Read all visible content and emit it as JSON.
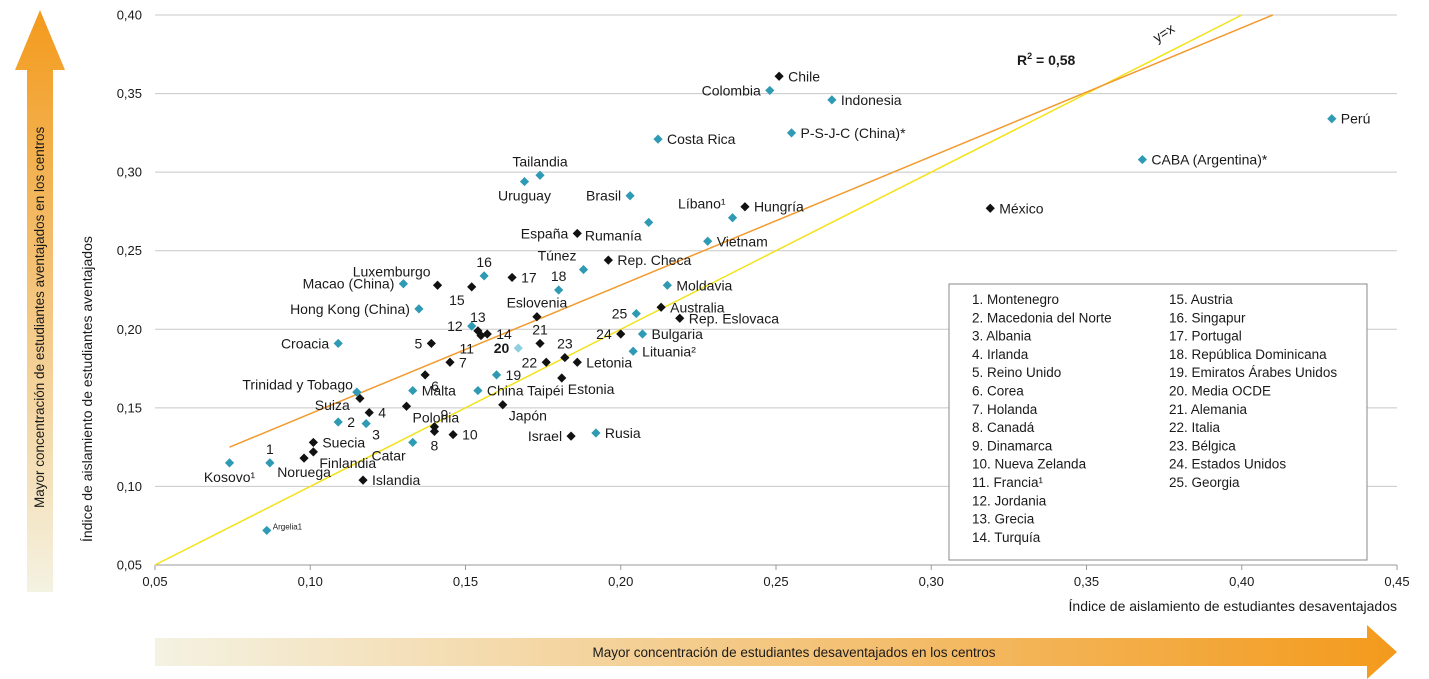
{
  "colors": {
    "teal": "#2e9ab3",
    "black": "#111111",
    "oecd": "#8fcfe0",
    "orange_line": "#f29a2e",
    "yellow_line": "#f3e21a",
    "arrow_start": "#f4f2e2",
    "arrow_end": "#f39a1c",
    "grid": "#c8c8c8"
  },
  "chart_data": {
    "type": "scatter",
    "xlabel": "Índice de aislamiento de estudiantes desaventajados",
    "ylabel": "Índice de aislamiento de estudiantes aventajados",
    "xlim": [
      0.05,
      0.45
    ],
    "ylim": [
      0.05,
      0.4
    ],
    "x_ticks": [
      "0,05",
      "0,10",
      "0,15",
      "0,20",
      "0,25",
      "0,30",
      "0,35",
      "0,40",
      "0,45"
    ],
    "y_ticks": [
      "0,05",
      "0,10",
      "0,15",
      "0,20",
      "0,25",
      "0,30",
      "0,35",
      "0,40"
    ],
    "grid": "horizontal",
    "r2_prefix": "R",
    "r2_sup": "2",
    "r2_value": " = 0,58",
    "diag_label": "y=x",
    "trend_line": {
      "x": [
        0.074,
        0.41
      ],
      "y": [
        0.125,
        0.4
      ]
    },
    "diag_line": {
      "x": [
        0.05,
        0.4
      ],
      "y": [
        0.05,
        0.4
      ]
    },
    "points": [
      {
        "label": "Chile",
        "x": 0.251,
        "y": 0.361,
        "color": "black",
        "pos": "r"
      },
      {
        "label": "Colombia",
        "x": 0.248,
        "y": 0.352,
        "color": "teal",
        "pos": "l"
      },
      {
        "label": "Indonesia",
        "x": 0.268,
        "y": 0.346,
        "color": "teal",
        "pos": "r"
      },
      {
        "label": "Perú",
        "x": 0.429,
        "y": 0.334,
        "color": "teal",
        "pos": "r"
      },
      {
        "label": "P-S-J-C (China)*",
        "x": 0.255,
        "y": 0.325,
        "color": "teal",
        "pos": "r"
      },
      {
        "label": "Costa Rica",
        "x": 0.212,
        "y": 0.321,
        "color": "teal",
        "pos": "r"
      },
      {
        "label": "CABA (Argentina)*",
        "x": 0.368,
        "y": 0.308,
        "color": "teal",
        "pos": "r"
      },
      {
        "label": "Tailandia",
        "x": 0.174,
        "y": 0.298,
        "color": "teal",
        "pos": "t"
      },
      {
        "label": "Uruguay",
        "x": 0.169,
        "y": 0.294,
        "color": "teal",
        "pos": "b"
      },
      {
        "label": "Brasil",
        "x": 0.203,
        "y": 0.285,
        "color": "teal",
        "pos": "l"
      },
      {
        "label": "Hungría",
        "x": 0.24,
        "y": 0.278,
        "color": "black",
        "pos": "r"
      },
      {
        "label": "Líbano¹",
        "x": 0.236,
        "y": 0.271,
        "color": "teal",
        "pos": "tl"
      },
      {
        "label": "México",
        "x": 0.319,
        "y": 0.277,
        "color": "black",
        "pos": "r"
      },
      {
        "label": "Rumanía",
        "x": 0.209,
        "y": 0.268,
        "color": "teal",
        "pos": "bl"
      },
      {
        "label": "España",
        "x": 0.186,
        "y": 0.261,
        "color": "black",
        "pos": "l"
      },
      {
        "label": "Vietnam",
        "x": 0.228,
        "y": 0.256,
        "color": "teal",
        "pos": "r"
      },
      {
        "label": "Rep. Checa",
        "x": 0.196,
        "y": 0.244,
        "color": "black",
        "pos": "r"
      },
      {
        "label": "Túnez",
        "x": 0.188,
        "y": 0.238,
        "color": "teal",
        "pos": "tl"
      },
      {
        "label": "16",
        "x": 0.156,
        "y": 0.234,
        "color": "teal",
        "pos": "t"
      },
      {
        "label": "17",
        "x": 0.165,
        "y": 0.233,
        "color": "black",
        "pos": "r"
      },
      {
        "label": "Luxemburgo",
        "x": 0.141,
        "y": 0.228,
        "color": "black",
        "pos": "tl"
      },
      {
        "label": "Macao (China)",
        "x": 0.13,
        "y": 0.229,
        "color": "teal",
        "pos": "l"
      },
      {
        "label": "Moldavia",
        "x": 0.215,
        "y": 0.228,
        "color": "teal",
        "pos": "r"
      },
      {
        "label": "18",
        "x": 0.18,
        "y": 0.225,
        "color": "teal",
        "pos": "t"
      },
      {
        "label": "15",
        "x": 0.152,
        "y": 0.227,
        "color": "black",
        "pos": "bl"
      },
      {
        "label": "Eslovenia",
        "x": 0.173,
        "y": 0.208,
        "color": "black",
        "pos": "t"
      },
      {
        "label": "Australia",
        "x": 0.213,
        "y": 0.214,
        "color": "black",
        "pos": "r"
      },
      {
        "label": "Hong Kong (China)",
        "x": 0.135,
        "y": 0.213,
        "color": "teal",
        "pos": "l"
      },
      {
        "label": "25",
        "x": 0.205,
        "y": 0.21,
        "color": "teal",
        "pos": "l"
      },
      {
        "label": "Rep. Eslovaca",
        "x": 0.219,
        "y": 0.207,
        "color": "black",
        "pos": "r"
      },
      {
        "label": "12",
        "x": 0.152,
        "y": 0.202,
        "color": "teal",
        "pos": "l"
      },
      {
        "label": "13",
        "x": 0.154,
        "y": 0.199,
        "color": "black",
        "pos": "t"
      },
      {
        "label": "14",
        "x": 0.157,
        "y": 0.197,
        "color": "black",
        "pos": "r"
      },
      {
        "label": "21",
        "x": 0.174,
        "y": 0.191,
        "color": "black",
        "pos": "t"
      },
      {
        "label": "24",
        "x": 0.2,
        "y": 0.197,
        "color": "black",
        "pos": "l"
      },
      {
        "label": "Bulgaria",
        "x": 0.207,
        "y": 0.197,
        "color": "teal",
        "pos": "r"
      },
      {
        "label": "5",
        "x": 0.139,
        "y": 0.191,
        "color": "black",
        "pos": "l"
      },
      {
        "label": "11",
        "x": 0.155,
        "y": 0.196,
        "color": "black",
        "pos": "bl"
      },
      {
        "label": "Croacia",
        "x": 0.109,
        "y": 0.191,
        "color": "teal",
        "pos": "l"
      },
      {
        "label": "20",
        "x": 0.167,
        "y": 0.188,
        "color": "oecd",
        "pos": "l"
      },
      {
        "label": "23",
        "x": 0.182,
        "y": 0.182,
        "color": "black",
        "pos": "t"
      },
      {
        "label": "Lituania²",
        "x": 0.204,
        "y": 0.186,
        "color": "teal",
        "pos": "r"
      },
      {
        "label": "22",
        "x": 0.176,
        "y": 0.179,
        "color": "black",
        "pos": "l"
      },
      {
        "label": "Letonia",
        "x": 0.186,
        "y": 0.179,
        "color": "black",
        "pos": "r"
      },
      {
        "label": "7",
        "x": 0.145,
        "y": 0.179,
        "color": "black",
        "pos": "r"
      },
      {
        "label": "6",
        "x": 0.137,
        "y": 0.171,
        "color": "black",
        "pos": "br"
      },
      {
        "label": "19",
        "x": 0.16,
        "y": 0.171,
        "color": "teal",
        "pos": "r"
      },
      {
        "label": "Estonia",
        "x": 0.181,
        "y": 0.169,
        "color": "black",
        "pos": "br"
      },
      {
        "label": "Trinidad y Tobago",
        "x": 0.116,
        "y": 0.156,
        "color": "black",
        "pos": "tl"
      },
      {
        "label": "Malta",
        "x": 0.133,
        "y": 0.161,
        "color": "teal",
        "pos": "r"
      },
      {
        "label": "China Taipéi",
        "x": 0.154,
        "y": 0.161,
        "color": "teal",
        "pos": "r"
      },
      {
        "label": "Suiza",
        "x": 0.115,
        "y": 0.16,
        "color": "teal",
        "pos": "bl"
      },
      {
        "label": "Polonia",
        "x": 0.131,
        "y": 0.151,
        "color": "black",
        "pos": "br"
      },
      {
        "label": "Japón",
        "x": 0.162,
        "y": 0.152,
        "color": "black",
        "pos": "br"
      },
      {
        "label": "4",
        "x": 0.119,
        "y": 0.147,
        "color": "black",
        "pos": "r"
      },
      {
        "label": "3",
        "x": 0.118,
        "y": 0.14,
        "color": "teal",
        "pos": "br"
      },
      {
        "label": "2",
        "x": 0.109,
        "y": 0.141,
        "color": "teal",
        "pos": "r"
      },
      {
        "label": "9",
        "x": 0.14,
        "y": 0.138,
        "color": "black",
        "pos": "tr"
      },
      {
        "label": "8",
        "x": 0.14,
        "y": 0.135,
        "color": "black",
        "pos": "b"
      },
      {
        "label": "10",
        "x": 0.146,
        "y": 0.133,
        "color": "black",
        "pos": "r"
      },
      {
        "label": "Israel",
        "x": 0.184,
        "y": 0.132,
        "color": "black",
        "pos": "l"
      },
      {
        "label": "Rusia",
        "x": 0.192,
        "y": 0.134,
        "color": "teal",
        "pos": "r"
      },
      {
        "label": "Suecia",
        "x": 0.101,
        "y": 0.128,
        "color": "black",
        "pos": "r"
      },
      {
        "label": "Catar",
        "x": 0.133,
        "y": 0.128,
        "color": "teal",
        "pos": "bl"
      },
      {
        "label": "Finlandia",
        "x": 0.101,
        "y": 0.122,
        "color": "black",
        "pos": "br"
      },
      {
        "label": "Noruega",
        "x": 0.098,
        "y": 0.118,
        "color": "black",
        "pos": "b"
      },
      {
        "label": "1",
        "x": 0.087,
        "y": 0.115,
        "color": "teal",
        "pos": "t"
      },
      {
        "label": "Kosovo¹",
        "x": 0.074,
        "y": 0.115,
        "color": "teal",
        "pos": "b"
      },
      {
        "label": "Islandia",
        "x": 0.117,
        "y": 0.104,
        "color": "black",
        "pos": "r"
      },
      {
        "label": "Argelia1",
        "x": 0.086,
        "y": 0.072,
        "color": "teal",
        "pos": "small"
      }
    ],
    "legend": [
      "1. Montenegro",
      "2. Macedonia del Norte",
      "3. Albania",
      "4. Irlanda",
      "5. Reino Unido",
      "6. Corea",
      "7. Holanda",
      "8. Canadá",
      "9. Dinamarca",
      "10. Nueva Zelanda",
      "11. Francia¹",
      "12. Jordania",
      "13. Grecia",
      "14. Turquía",
      "15. Austria",
      "16. Singapur",
      "17. Portugal",
      "18. República Dominicana",
      "19. Emiratos Árabes Unidos",
      "20. Media OCDE",
      "21. Alemania",
      "22. Italia",
      "23. Bélgica",
      "24. Estados Unidos",
      "25. Georgia"
    ],
    "legend_placement": "bottom-right"
  },
  "arrows": {
    "vertical": "Mayor concentración de estudiantes aventajados en los centros",
    "horizontal": "Mayor concentración de estudiantes desaventajados en los centros"
  }
}
